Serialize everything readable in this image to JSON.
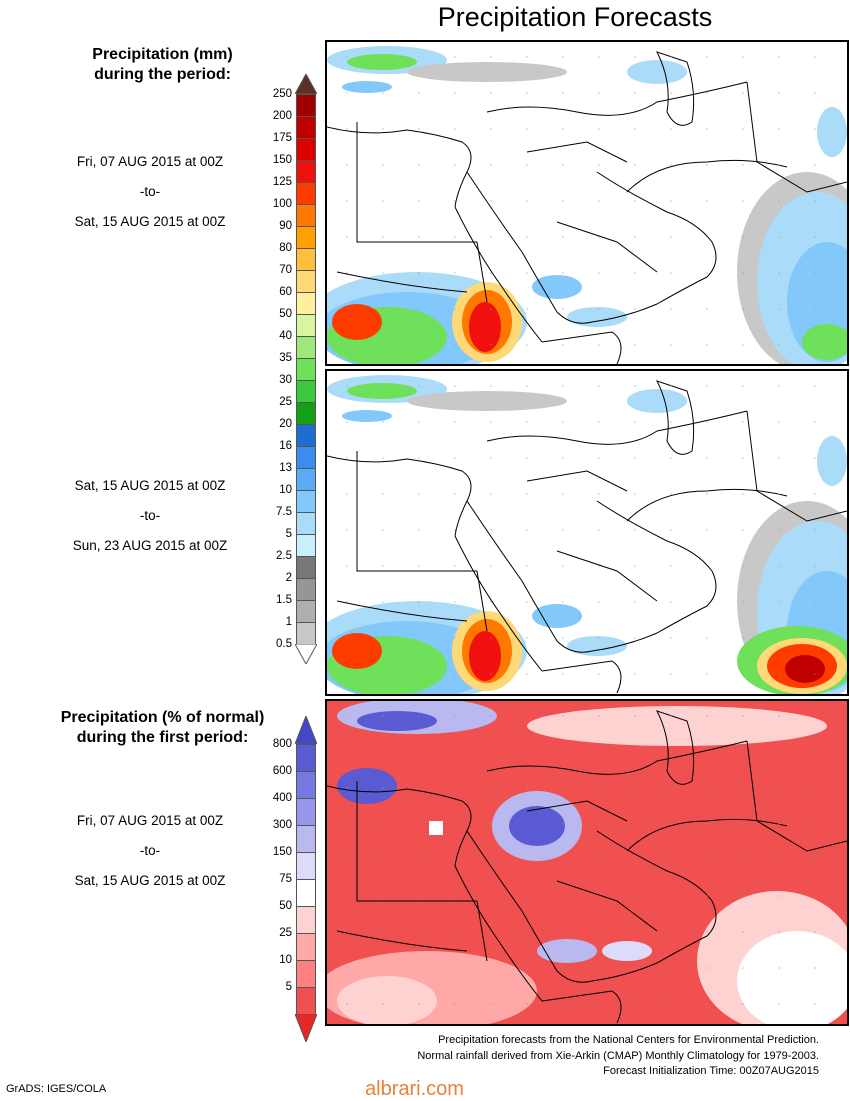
{
  "title": "Precipitation Forecasts",
  "precip_section": {
    "heading_line1": "Precipitation (mm)",
    "heading_line2": "during the period:"
  },
  "period1": {
    "start": "Fri, 07 AUG 2015 at 00Z",
    "sep": "-to-",
    "end": "Sat, 15 AUG 2015 at 00Z"
  },
  "period2": {
    "start": "Sat, 15 AUG 2015 at 00Z",
    "sep": "-to-",
    "end": "Sun, 23 AUG 2015 at 00Z"
  },
  "mm_scale": {
    "labels": [
      "250",
      "200",
      "175",
      "150",
      "125",
      "100",
      "90",
      "80",
      "70",
      "60",
      "50",
      "40",
      "35",
      "30",
      "25",
      "20",
      "16",
      "13",
      "10",
      "7.5",
      "5",
      "2.5",
      "2",
      "1.5",
      "1",
      "0.5"
    ],
    "colors": [
      "#a00000",
      "#c00000",
      "#dc0000",
      "#f01010",
      "#ff3c00",
      "#ff7800",
      "#ffa000",
      "#ffbe3c",
      "#ffd878",
      "#fff0a0",
      "#d8f5a0",
      "#a0e87a",
      "#6ee05a",
      "#3cc83c",
      "#14a014",
      "#1e6ed2",
      "#3c8cf0",
      "#5aaaf5",
      "#82c8fa",
      "#aadcfa",
      "#c8f0fa",
      "#787878",
      "#969696",
      "#afafaf",
      "#c8c8c8",
      "#ffffff"
    ],
    "top_arrow_color": "#5a3228"
  },
  "pct_section": {
    "heading_line1": "Precipitation (% of normal)",
    "heading_line2": "during the first period:"
  },
  "period3": {
    "start": "Fri, 07 AUG 2015 at 00Z",
    "sep": "-to-",
    "end": "Sat, 15 AUG 2015 at 00Z"
  },
  "pct_scale": {
    "labels": [
      "800",
      "600",
      "400",
      "300",
      "150",
      "75",
      "50",
      "25",
      "10",
      "5"
    ],
    "colors": [
      "#5a5ad2",
      "#7878e1",
      "#9696eb",
      "#b9b9f0",
      "#dcdcfa",
      "#ffffff",
      "#ffd2d2",
      "#ffa8a8",
      "#ff8080",
      "#f05050"
    ],
    "top_arrow_color": "#4646c8",
    "bottom_arrow_color": "#e62828"
  },
  "footer": {
    "line1": "Precipitation forecasts from the National Centers for Environmental Prediction.",
    "line2": "Normal rainfall derived from Xie-Arkin (CMAP) Monthly Climatology for 1979-2003.",
    "line3": "Forecast Initialization Time: 00Z07AUG2015"
  },
  "credit": "GrADS: IGES/COLA",
  "watermark": "albrari.com"
}
